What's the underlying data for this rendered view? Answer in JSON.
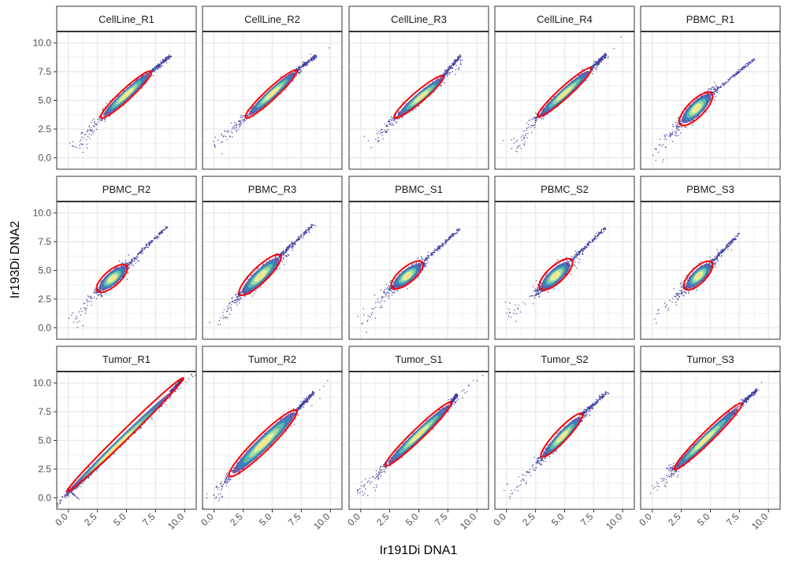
{
  "chart_data": {
    "type": "scatter",
    "title": "",
    "xlabel": "Ir191Di DNA1",
    "ylabel": "Ir193Di DNA2",
    "xlim": [
      -1,
      11
    ],
    "ylim": [
      -1,
      11
    ],
    "x_ticks": [
      0.0,
      2.5,
      5.0,
      7.5,
      10.0
    ],
    "y_ticks": [
      0.0,
      2.5,
      5.0,
      7.5,
      10.0
    ],
    "x_tick_labels": [
      "0.0",
      "2.5",
      "5.0",
      "7.5",
      "10.0"
    ],
    "y_tick_labels": [
      "0.0",
      "2.5",
      "5.0",
      "7.5",
      "10.0"
    ],
    "grid": true,
    "layout": "facet 3 rows x 5 columns",
    "colors": {
      "points": "#3f3f9f",
      "ellipse": "#ff0000",
      "density_low": "#5e4fa2",
      "density_mid": "#abdda4",
      "density_high": "#fee08b",
      "strip_fill": "#ffffff",
      "grid": "#ebebeb"
    },
    "panels": [
      {
        "name": "CellLine_R1",
        "center": [
          5.0,
          5.5
        ],
        "ellipse_from": [
          2.9,
          3.6
        ],
        "ellipse_to": [
          7.0,
          7.4
        ],
        "ellipse_width": 0.5,
        "tail_max": [
          8.8,
          8.9
        ],
        "outliers_min": [
          0.6,
          0.7
        ]
      },
      {
        "name": "CellLine_R2",
        "center": [
          5.0,
          5.6
        ],
        "ellipse_from": [
          2.8,
          3.6
        ],
        "ellipse_to": [
          7.0,
          7.5
        ],
        "ellipse_width": 0.5,
        "tail_max": [
          8.8,
          8.9
        ],
        "outliers_min": [
          0.0,
          1.0
        ]
      },
      {
        "name": "CellLine_R3",
        "center": [
          5.2,
          5.3
        ],
        "ellipse_from": [
          3.0,
          3.6
        ],
        "ellipse_to": [
          7.0,
          7.0
        ],
        "ellipse_width": 0.5,
        "tail_max": [
          8.6,
          8.9
        ],
        "outliers_min": [
          0.7,
          0.7
        ]
      },
      {
        "name": "CellLine_R4",
        "center": [
          5.0,
          5.6
        ],
        "ellipse_from": [
          2.8,
          3.7
        ],
        "ellipse_to": [
          7.2,
          7.7
        ],
        "ellipse_width": 0.5,
        "tail_max": [
          8.6,
          9.0
        ],
        "outliers_min": [
          0.5,
          0.5
        ]
      },
      {
        "name": "PBMC_R1",
        "center": [
          3.8,
          4.3
        ],
        "ellipse_from": [
          2.5,
          3.0
        ],
        "ellipse_to": [
          5.0,
          5.5
        ],
        "ellipse_width": 0.75,
        "tail_max": [
          8.8,
          8.6
        ],
        "outliers_min": [
          0.0,
          0.0
        ]
      },
      {
        "name": "PBMC_R2",
        "center": [
          3.8,
          4.3
        ],
        "ellipse_from": [
          2.6,
          3.3
        ],
        "ellipse_to": [
          4.9,
          5.3
        ],
        "ellipse_width": 0.7,
        "tail_max": [
          8.5,
          8.8
        ],
        "outliers_min": [
          0.3,
          0.2
        ]
      },
      {
        "name": "PBMC_R3",
        "center": [
          4.0,
          4.5
        ],
        "ellipse_from": [
          2.3,
          3.0
        ],
        "ellipse_to": [
          5.6,
          6.2
        ],
        "ellipse_width": 0.7,
        "tail_max": [
          8.6,
          9.0
        ],
        "outliers_min": [
          0.0,
          0.0
        ]
      },
      {
        "name": "PBMC_S1",
        "center": [
          4.0,
          4.5
        ],
        "ellipse_from": [
          2.8,
          3.6
        ],
        "ellipse_to": [
          5.2,
          5.6
        ],
        "ellipse_width": 0.7,
        "tail_max": [
          8.5,
          8.6
        ],
        "outliers_min": [
          0.0,
          0.1
        ]
      },
      {
        "name": "PBMC_S2",
        "center": [
          4.2,
          4.5
        ],
        "ellipse_from": [
          3.0,
          3.5
        ],
        "ellipse_to": [
          5.5,
          5.8
        ],
        "ellipse_width": 0.75,
        "tail_max": [
          8.5,
          8.7
        ],
        "outliers_min": [
          0.0,
          1.2
        ]
      },
      {
        "name": "PBMC_S3",
        "center": [
          4.0,
          4.5
        ],
        "ellipse_from": [
          2.9,
          3.5
        ],
        "ellipse_to": [
          5.0,
          5.6
        ],
        "ellipse_width": 0.7,
        "tail_max": [
          7.5,
          8.2
        ],
        "outliers_min": [
          0.0,
          0.6
        ]
      },
      {
        "name": "Tumor_R1",
        "center": [
          4.0,
          4.3
        ],
        "ellipse_from": [
          0.0,
          0.7
        ],
        "ellipse_to": [
          9.8,
          10.3
        ],
        "ellipse_width": 0.4,
        "tail_max": [
          8.8,
          9.2
        ],
        "outliers_min": [
          0.8,
          0.0
        ]
      },
      {
        "name": "Tumor_R2",
        "center": [
          4.3,
          4.8
        ],
        "ellipse_from": [
          1.4,
          2.0
        ],
        "ellipse_to": [
          7.0,
          7.5
        ],
        "ellipse_width": 0.7,
        "tail_max": [
          8.6,
          9.2
        ],
        "outliers_min": [
          0.0,
          0.0
        ]
      },
      {
        "name": "Tumor_S1",
        "center": [
          5.0,
          5.5
        ],
        "ellipse_from": [
          2.2,
          2.9
        ],
        "ellipse_to": [
          7.7,
          8.2
        ],
        "ellipse_width": 0.5,
        "tail_max": [
          8.3,
          9.0
        ],
        "outliers_min": [
          0.0,
          0.1
        ]
      },
      {
        "name": "Tumor_S2",
        "center": [
          4.8,
          5.3
        ],
        "ellipse_from": [
          3.1,
          3.7
        ],
        "ellipse_to": [
          6.4,
          7.2
        ],
        "ellipse_width": 0.55,
        "tail_max": [
          8.7,
          9.2
        ],
        "outliers_min": [
          0.0,
          0.0
        ]
      },
      {
        "name": "Tumor_S3",
        "center": [
          4.5,
          5.0
        ],
        "ellipse_from": [
          2.0,
          2.6
        ],
        "ellipse_to": [
          7.6,
          8.1
        ],
        "ellipse_width": 0.5,
        "tail_max": [
          9.0,
          9.4
        ],
        "outliers_min": [
          1.5,
          2.2
        ]
      }
    ]
  }
}
